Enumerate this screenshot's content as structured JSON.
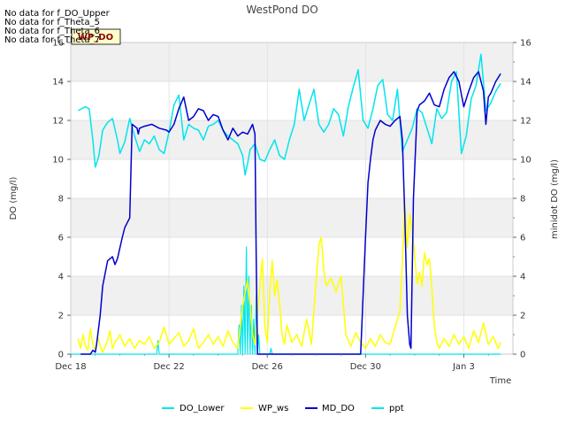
{
  "chart_data": {
    "type": "line",
    "title": "WestPond DO",
    "xlabel": "Time",
    "ylabel_left": "DO (mg/l)",
    "ylabel_right": "minidot DO (mg/l)",
    "xlim": [
      0,
      18
    ],
    "ylim_left": [
      0,
      16
    ],
    "ylim_right": [
      0,
      16
    ],
    "x_ticks": [
      {
        "value": 0,
        "label": "Dec 18"
      },
      {
        "value": 4,
        "label": "Dec 22"
      },
      {
        "value": 8,
        "label": "Dec 26"
      },
      {
        "value": 12,
        "label": "Dec 30"
      },
      {
        "value": 16,
        "label": "Jan 3"
      }
    ],
    "y_ticks": [
      "0",
      "2",
      "4",
      "6",
      "8",
      "10",
      "12",
      "14",
      "16"
    ],
    "no_data_notes": [
      "No data for f_DO_Upper",
      "No data for f_Theta_5",
      "No data for f_Theta_6",
      "No data for f_Theta_7"
    ],
    "badge": "WP_DO",
    "series": [
      {
        "name": "DO_Lower",
        "color": "#00e5ee",
        "axis": "left",
        "x": [
          0.3,
          0.6,
          0.75,
          0.9,
          1.0,
          1.15,
          1.3,
          1.5,
          1.7,
          1.9,
          2.0,
          2.2,
          2.4,
          2.6,
          2.8,
          3.0,
          3.2,
          3.4,
          3.6,
          3.8,
          4.0,
          4.2,
          4.4,
          4.6,
          4.8,
          5.0,
          5.2,
          5.4,
          5.6,
          5.8,
          6.0,
          6.2,
          6.4,
          6.6,
          6.8,
          7.0,
          7.1,
          7.2,
          7.3,
          7.5,
          7.7,
          7.9,
          8.1,
          8.3,
          8.5,
          8.7,
          8.9,
          9.1,
          9.3,
          9.5,
          9.7,
          9.9,
          10.1,
          10.3,
          10.5,
          10.7,
          10.9,
          11.1,
          11.3,
          11.5,
          11.7,
          11.9,
          12.1,
          12.3,
          12.5,
          12.7,
          12.9,
          13.1,
          13.3,
          13.5,
          13.7,
          13.9,
          14.1,
          14.3,
          14.5,
          14.7,
          14.9,
          15.1,
          15.3,
          15.5,
          15.7,
          15.9,
          16.1,
          16.3,
          16.5,
          16.7,
          16.9,
          17.1,
          17.3,
          17.5
        ],
        "values": [
          12.5,
          12.7,
          12.6,
          11.0,
          9.6,
          10.2,
          11.5,
          11.9,
          12.1,
          11.0,
          10.3,
          10.9,
          12.1,
          11.2,
          10.4,
          11.0,
          10.8,
          11.2,
          10.5,
          10.3,
          11.4,
          12.8,
          13.3,
          11.0,
          11.8,
          11.6,
          11.5,
          11.0,
          11.7,
          11.8,
          12.0,
          11.5,
          11.2,
          11.0,
          10.8,
          10.2,
          9.2,
          9.8,
          10.5,
          10.8,
          10.0,
          9.9,
          10.5,
          11.0,
          10.2,
          10.0,
          11.0,
          11.8,
          13.6,
          12.0,
          12.8,
          13.6,
          11.8,
          11.4,
          11.8,
          12.6,
          12.3,
          11.2,
          12.7,
          13.7,
          14.6,
          12.0,
          11.6,
          12.6,
          13.8,
          14.1,
          12.3,
          12.0,
          13.6,
          10.4,
          11.0,
          11.6,
          12.6,
          12.4,
          11.6,
          10.8,
          12.6,
          12.1,
          12.4,
          14.0,
          14.5,
          10.3,
          11.2,
          13.1,
          13.8,
          15.4,
          12.5,
          12.9,
          13.5,
          13.9
        ]
      },
      {
        "name": "WP_ws",
        "color": "#ffff00",
        "axis": "left",
        "x": [
          0.3,
          0.4,
          0.5,
          0.6,
          0.7,
          0.8,
          0.9,
          1.0,
          1.1,
          1.2,
          1.3,
          1.5,
          1.6,
          1.7,
          1.8,
          2.0,
          2.2,
          2.4,
          2.6,
          2.8,
          3.0,
          3.2,
          3.4,
          3.6,
          3.8,
          4.0,
          4.2,
          4.4,
          4.6,
          4.8,
          5.0,
          5.2,
          5.4,
          5.6,
          5.8,
          6.0,
          6.2,
          6.4,
          6.6,
          6.8,
          7.0,
          7.2,
          7.3,
          7.4,
          7.5,
          7.6,
          7.7,
          7.8,
          7.9,
          8.0,
          8.1,
          8.2,
          8.3,
          8.4,
          8.5,
          8.6,
          8.7,
          8.8,
          9.0,
          9.2,
          9.4,
          9.6,
          9.8,
          10.0,
          10.1,
          10.2,
          10.3,
          10.4,
          10.6,
          10.8,
          11.0,
          11.2,
          11.4,
          11.6,
          11.8,
          12.0,
          12.2,
          12.4,
          12.6,
          12.8,
          13.0,
          13.2,
          13.4,
          13.5,
          13.6,
          13.7,
          13.8,
          13.9,
          14.0,
          14.1,
          14.2,
          14.3,
          14.4,
          14.5,
          14.6,
          14.7,
          14.8,
          14.9,
          15.0,
          15.2,
          15.4,
          15.6,
          15.8,
          16.0,
          16.2,
          16.4,
          16.6,
          16.8,
          17.0,
          17.2,
          17.4,
          17.5
        ],
        "values": [
          0.8,
          0.3,
          1.0,
          0.4,
          0.2,
          1.3,
          0.5,
          0.2,
          0.9,
          0.4,
          0.1,
          0.7,
          1.2,
          0.3,
          0.6,
          1.0,
          0.4,
          0.8,
          0.3,
          0.7,
          0.5,
          0.9,
          0.3,
          0.6,
          1.4,
          0.5,
          0.8,
          1.1,
          0.4,
          0.7,
          1.3,
          0.3,
          0.6,
          1.0,
          0.5,
          0.9,
          0.4,
          1.2,
          0.6,
          0.3,
          2.5,
          3.8,
          2.6,
          1.0,
          0.5,
          2.0,
          3.5,
          4.9,
          1.5,
          0.6,
          3.2,
          4.8,
          3.0,
          3.8,
          2.6,
          1.0,
          0.5,
          1.5,
          0.6,
          1.0,
          0.4,
          1.8,
          0.5,
          4.0,
          5.6,
          6.0,
          4.3,
          3.5,
          3.9,
          3.2,
          4.0,
          1.0,
          0.4,
          1.1,
          0.6,
          0.3,
          0.8,
          0.4,
          1.0,
          0.6,
          0.5,
          1.4,
          2.2,
          4.8,
          7.8,
          5.5,
          7.2,
          6.4,
          5.0,
          3.6,
          4.2,
          3.5,
          5.2,
          4.6,
          4.9,
          3.4,
          1.5,
          0.6,
          0.3,
          0.8,
          0.4,
          1.0,
          0.5,
          0.9,
          0.3,
          1.2,
          0.6,
          1.6,
          0.5,
          0.9,
          0.3,
          0.6
        ]
      },
      {
        "name": "MD_DO",
        "color": "#0000cd",
        "axis": "right",
        "x": [
          0.4,
          0.8,
          0.9,
          1.0,
          1.05,
          1.2,
          1.3,
          1.5,
          1.7,
          1.8,
          1.9,
          2.1,
          2.2,
          2.4,
          2.5,
          2.7,
          2.75,
          2.8,
          3.0,
          3.3,
          3.6,
          3.9,
          4.0,
          4.2,
          4.4,
          4.6,
          4.8,
          5.0,
          5.2,
          5.4,
          5.6,
          5.8,
          6.0,
          6.2,
          6.4,
          6.6,
          6.8,
          7.0,
          7.2,
          7.4,
          7.5,
          7.55,
          7.6,
          7.65,
          7.7,
          8.0,
          9.0,
          10.0,
          11.0,
          11.5,
          11.8,
          12.0,
          12.1,
          12.2,
          12.3,
          12.4,
          12.6,
          12.8,
          13.0,
          13.2,
          13.4,
          13.5,
          13.6,
          13.7,
          13.8,
          13.85,
          13.95,
          14.1,
          14.2,
          14.4,
          14.6,
          14.8,
          15.0,
          15.2,
          15.4,
          15.6,
          15.8,
          16.0,
          16.2,
          16.4,
          16.6,
          16.8,
          16.9,
          17.0,
          17.1,
          17.3,
          17.5
        ],
        "values": [
          0.0,
          0.0,
          0.2,
          0.1,
          0.5,
          2.0,
          3.5,
          4.8,
          5.0,
          4.6,
          4.9,
          6.0,
          6.5,
          7.0,
          11.8,
          11.6,
          11.3,
          11.6,
          11.7,
          11.8,
          11.6,
          11.5,
          11.4,
          11.8,
          12.6,
          13.2,
          12.0,
          12.2,
          12.6,
          12.5,
          12.0,
          12.3,
          12.2,
          11.5,
          11.0,
          11.6,
          11.2,
          11.4,
          11.3,
          11.8,
          11.3,
          5.0,
          0.0,
          0.0,
          0.0,
          0.0,
          0.0,
          0.0,
          0.0,
          0.0,
          0.0,
          6.0,
          8.8,
          10.0,
          11.0,
          11.5,
          12.0,
          11.8,
          11.7,
          12.0,
          12.2,
          11.0,
          7.0,
          2.0,
          0.5,
          0.3,
          8.0,
          12.5,
          12.8,
          13.0,
          13.4,
          12.8,
          12.7,
          13.6,
          14.2,
          14.5,
          14.0,
          12.7,
          13.5,
          14.2,
          14.5,
          13.5,
          11.8,
          13.2,
          13.4,
          14.0,
          14.4
        ]
      },
      {
        "name": "ppt",
        "color": "#00e5ee",
        "axis": "left",
        "x": [
          0.0,
          3.5,
          3.55,
          3.6,
          3.65,
          6.8,
          6.85,
          6.9,
          6.95,
          7.0,
          7.05,
          7.1,
          7.15,
          7.2,
          7.25,
          7.3,
          7.35,
          7.4,
          7.45,
          7.5,
          7.55,
          7.6,
          7.65,
          7.7,
          8.1,
          8.15,
          8.2,
          8.25,
          16.0,
          17.5
        ],
        "values": [
          0,
          0,
          0.7,
          0,
          0,
          0,
          1.5,
          0,
          2.5,
          0,
          3.5,
          0,
          5.5,
          0,
          4.0,
          0,
          2.5,
          0,
          1.8,
          0,
          3.0,
          0,
          1.0,
          0,
          0,
          0.3,
          0,
          0,
          0,
          0
        ]
      }
    ]
  }
}
